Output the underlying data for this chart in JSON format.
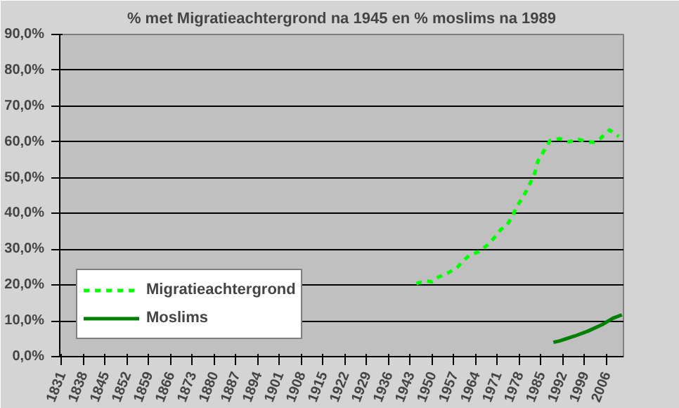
{
  "chart_data": {
    "type": "line",
    "title": "% met Migratieachtergrond na 1945 en % moslims na 1989",
    "xlim": [
      1830.5,
      2011.5
    ],
    "xticks": [
      1831,
      1838,
      1845,
      1852,
      1859,
      1866,
      1873,
      1880,
      1887,
      1894,
      1901,
      1908,
      1915,
      1922,
      1929,
      1936,
      1943,
      1950,
      1957,
      1964,
      1971,
      1978,
      1985,
      1992,
      1999,
      2006
    ],
    "ylim": [
      0,
      90
    ],
    "yticks": [
      {
        "value": 0,
        "label": "0,0%"
      },
      {
        "value": 10,
        "label": "10,0%"
      },
      {
        "value": 20,
        "label": "20,0%"
      },
      {
        "value": 30,
        "label": "30,0%"
      },
      {
        "value": 40,
        "label": "40,0%"
      },
      {
        "value": 50,
        "label": "50,0%"
      },
      {
        "value": 60,
        "label": "60,0%"
      },
      {
        "value": 70,
        "label": "70,0%"
      },
      {
        "value": 80,
        "label": "80,0%"
      },
      {
        "value": 90,
        "label": "90,0%"
      }
    ],
    "grid": "y",
    "legend": "bottom left",
    "series": [
      {
        "name": "Migratieachtergrond",
        "color": "#00ff00",
        "line_style": "dashed",
        "x": [
          1945,
          1948,
          1950,
          1952,
          1955,
          1958,
          1960,
          1962,
          1965,
          1968,
          1970,
          1972,
          1974,
          1976,
          1977,
          1979,
          1981,
          1983,
          1984,
          1986,
          1988,
          1991,
          1994,
          1997,
          2000,
          2002,
          2004,
          2007,
          2010
        ],
        "values": [
          20.4,
          21.2,
          20.9,
          22.2,
          23.3,
          24.8,
          26.7,
          28.3,
          29.3,
          31.3,
          33.2,
          35.4,
          36.7,
          39.3,
          41.7,
          44.2,
          47.4,
          51.2,
          54.6,
          57.5,
          60.4,
          60.9,
          60.0,
          60.7,
          60.0,
          59.9,
          60.9,
          63.3,
          61.5
        ]
      },
      {
        "name": "Moslims",
        "color": "#008000",
        "line_style": "solid",
        "x": [
          1989,
          1991,
          1996,
          2000,
          2005,
          2008,
          2011
        ],
        "values": [
          4.0,
          4.4,
          5.8,
          7.1,
          9.1,
          10.7,
          11.7
        ]
      }
    ]
  }
}
